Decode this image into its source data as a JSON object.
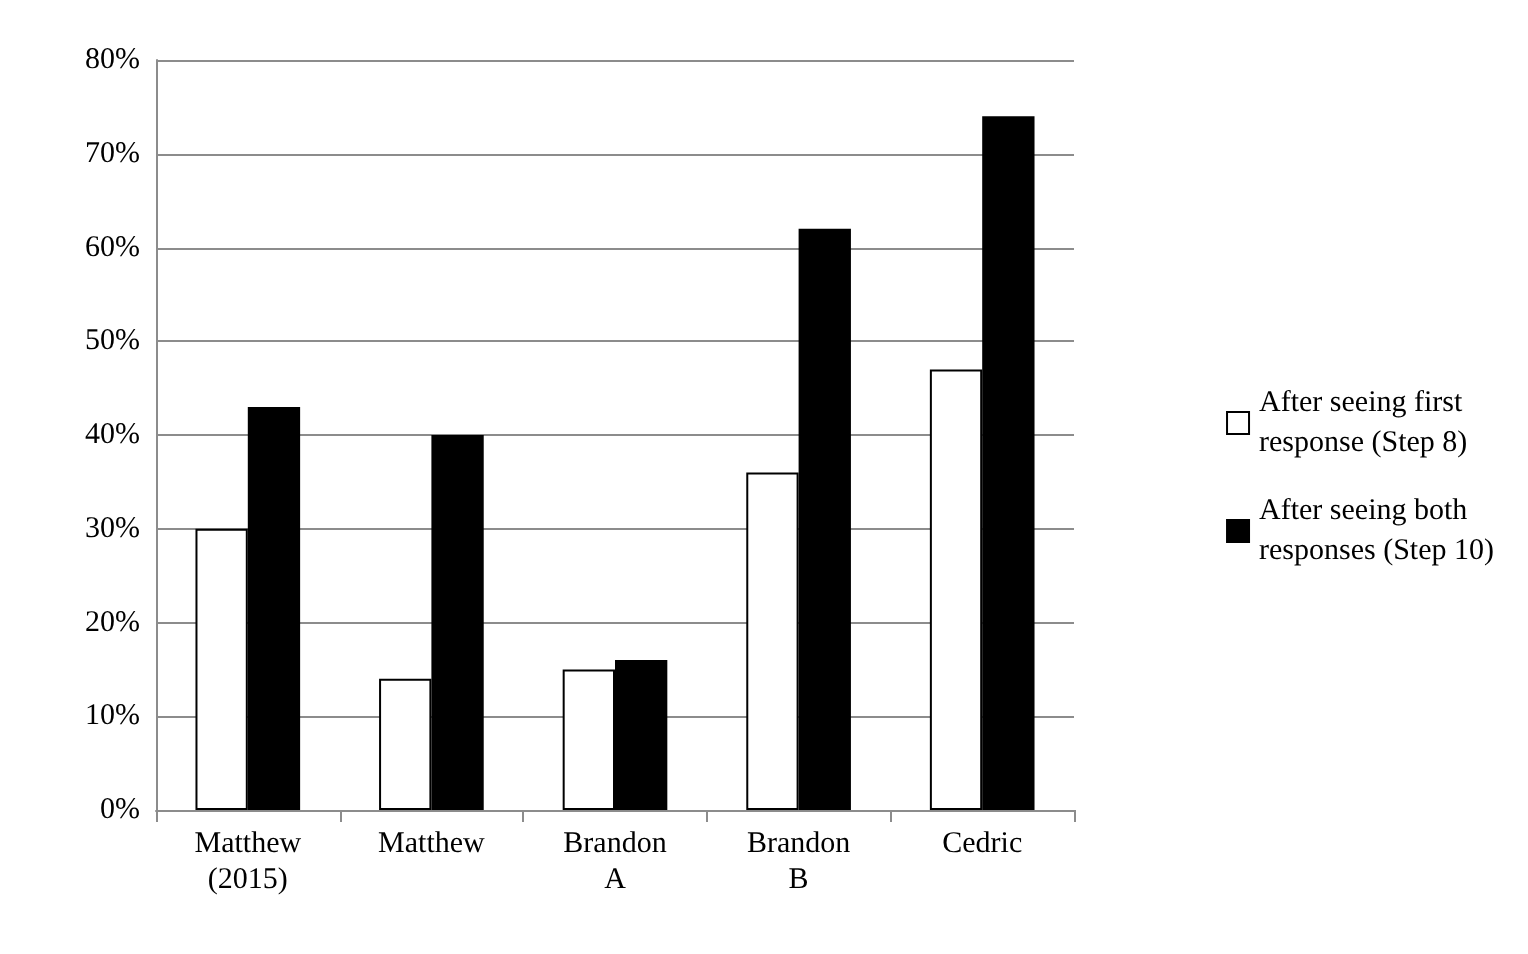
{
  "chart_data": {
    "type": "bar",
    "categories": [
      "Matthew\n(2015)",
      "Matthew",
      "Brandon\nA",
      "Brandon\nB",
      "Cedric"
    ],
    "series": [
      {
        "name": "After seeing first\nresponse (Step 8)",
        "color": "#ffffff",
        "values": [
          30,
          14,
          15,
          36,
          47
        ]
      },
      {
        "name": "After seeing both\nresponses (Step 10)",
        "color": "#000000",
        "values": [
          43,
          40,
          16,
          62,
          74
        ]
      }
    ],
    "ylim": [
      0,
      80
    ],
    "yticks": [
      {
        "value": 0,
        "label": "0%"
      },
      {
        "value": 10,
        "label": "10%"
      },
      {
        "value": 20,
        "label": "20%"
      },
      {
        "value": 30,
        "label": "30%"
      },
      {
        "value": 40,
        "label": "40%"
      },
      {
        "value": 50,
        "label": "50%"
      },
      {
        "value": 60,
        "label": "60%"
      },
      {
        "value": 70,
        "label": "70%"
      },
      {
        "value": 80,
        "label": "80%"
      }
    ],
    "grid": "y",
    "legend": "right"
  }
}
